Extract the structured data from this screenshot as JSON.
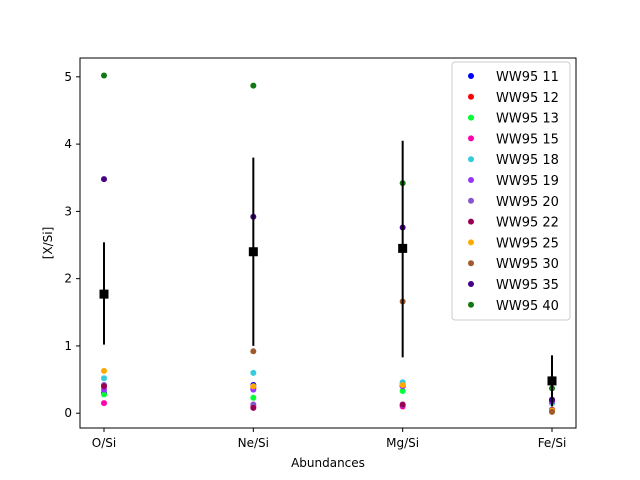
{
  "chart_data": {
    "type": "scatter",
    "title": "",
    "xlabel": "Abundances",
    "ylabel": "[X/Si]",
    "categories": [
      "O/Si",
      "Ne/Si",
      "Mg/Si",
      "Fe/Si"
    ],
    "ylim": [
      -0.22,
      5.28
    ],
    "yticks": [
      0,
      1,
      2,
      3,
      4,
      5
    ],
    "grid": false,
    "legend_position": "top-right",
    "series": [
      {
        "name": "WW95 11",
        "color": "#0000ff",
        "values": [
          0.3,
          0.42,
          0.4,
          0.2
        ]
      },
      {
        "name": "WW95 12",
        "color": "#ff0000",
        "values": [
          0.4,
          0.38,
          0.43,
          0.18
        ]
      },
      {
        "name": "WW95 13",
        "color": "#00ff33",
        "values": [
          0.28,
          0.23,
          0.33,
          0.15
        ]
      },
      {
        "name": "WW95 15",
        "color": "#ff00aa",
        "values": [
          0.15,
          0.1,
          0.1,
          0.05
        ]
      },
      {
        "name": "WW95 18",
        "color": "#33ccdd",
        "values": [
          0.52,
          0.6,
          0.46,
          0.15
        ]
      },
      {
        "name": "WW95 19",
        "color": "#9933ff",
        "values": [
          0.35,
          0.35,
          0.4,
          0.17
        ]
      },
      {
        "name": "WW95 20",
        "color": "#8855cc",
        "values": [
          0.42,
          0.13,
          0.12,
          0.05
        ]
      },
      {
        "name": "WW95 22",
        "color": "#990055",
        "values": [
          0.4,
          0.08,
          0.13,
          0.05
        ]
      },
      {
        "name": "WW95 25",
        "color": "#ffaa00",
        "values": [
          0.63,
          0.4,
          0.42,
          0.04
        ]
      },
      {
        "name": "WW95 30",
        "color": "#a05a2c",
        "values": [
          1.74,
          0.92,
          1.66,
          0.02
        ]
      },
      {
        "name": "WW95 35",
        "color": "#440088",
        "values": [
          3.48,
          2.92,
          2.76,
          0.2
        ]
      },
      {
        "name": "WW95 40",
        "color": "#117711",
        "values": [
          5.02,
          4.87,
          3.42,
          0.37
        ]
      }
    ],
    "observed": {
      "color": "#000000",
      "values": [
        1.77,
        2.4,
        2.45,
        0.48
      ],
      "error_low": [
        1.02,
        1.0,
        0.83,
        0.1
      ],
      "error_high": [
        2.54,
        3.8,
        4.05,
        0.86
      ]
    }
  }
}
